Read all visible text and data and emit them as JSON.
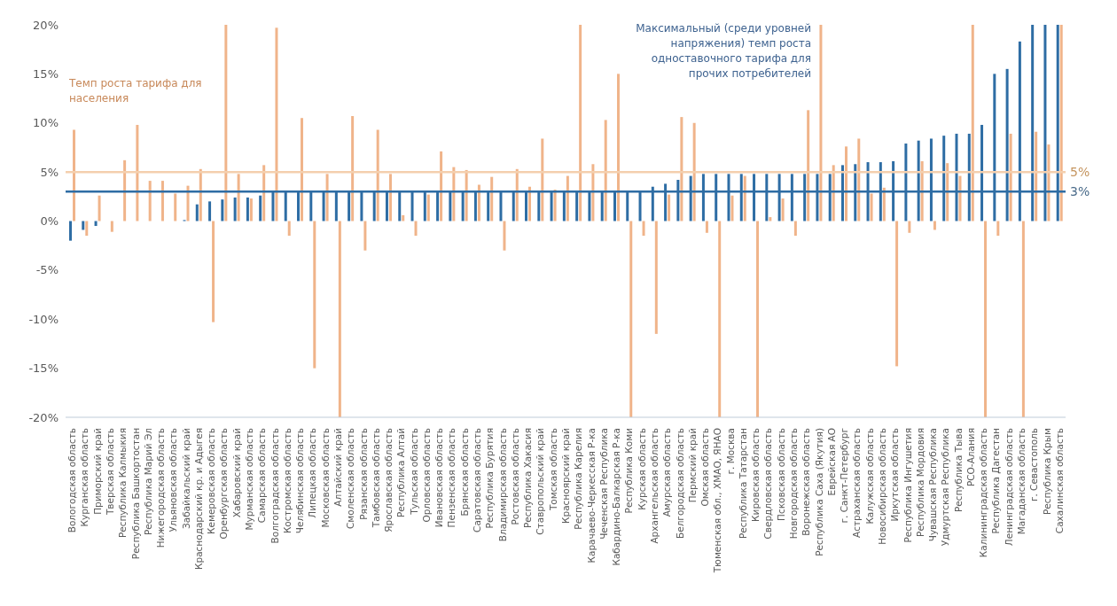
{
  "chart_data": {
    "type": "bar",
    "categories": [
      "Вологодская область",
      "Курганская область",
      "Приморский край",
      "Тверская область",
      "Республика Калмыкия",
      "Республика Башкортостан",
      "Республика Марий Эл",
      "Нижегородская область",
      "Ульяновская область",
      "Забайкальский край",
      "Краснодарский кр. и Адыгея",
      "Кемеровская область",
      "Оренбургская область",
      "Хабаровский край",
      "Мурманская область",
      "Самарская область",
      "Волгоградская область",
      "Костромская область",
      "Челябинская область",
      "Липецкая область",
      "Московская область",
      "Алтайский край",
      "Смоленская область",
      "Рязанская область",
      "Тамбовская область",
      "Ярославская область",
      "Республика Алтай",
      "Тульская область",
      "Орловская область",
      "Ивановская область",
      "Пензенская область",
      "Брянская область",
      "Саратовская область",
      "Республика Бурятия",
      "Владимирская область",
      "Ростовская область",
      "Республика Хакасия",
      "Ставропольский край",
      "Томская область",
      "Красноярский край",
      "Республика Карелия",
      "Карачаево-Черкесская Р-ка",
      "Чеченская Республика",
      "Кабардино-Балкарская Р-ка",
      "Республика Коми",
      "Курская область",
      "Архангельская область",
      "Амурская область",
      "Белгородская область",
      "Пермский край",
      "Омская область",
      "Тюменская обл., ХМАО, ЯНАО",
      "г. Москва",
      "Республика Татарстан",
      "Кировская область",
      "Свердловская область",
      "Псковская область",
      "Новгородская область",
      "Воронежская область",
      "Республика Саха (Якутия)",
      "Еврейская АО",
      "г. Санкт-Петербург",
      "Астраханская область",
      "Калужская область",
      "Новосибирская область",
      "Иркутская область",
      "Республика Ингушетия",
      "Республика Мордовия",
      "Чувашская Республика",
      "Удмуртская Республика",
      "Республика Тыва",
      "РСО-Алания",
      "Калининградская область",
      "Республика Дагестан",
      "Ленинградская область",
      "Магаданская область",
      "г. Севастополь",
      "Республика Крым",
      "Сахалинская область"
    ],
    "series": [
      {
        "name": "Максимальный (среди уровней напряжения) темп роста одноставочного тарифа для прочих потребителей",
        "color": "#2e6da4",
        "values": [
          -2.0,
          -0.9,
          -0.5,
          0,
          0,
          0,
          0,
          0,
          0,
          0.1,
          1.7,
          2.0,
          2.2,
          2.4,
          2.4,
          2.6,
          3,
          3,
          3,
          3,
          3,
          3,
          3,
          3,
          3,
          3,
          3,
          3,
          3,
          3,
          3,
          3,
          3,
          3,
          3,
          3,
          3,
          3,
          3,
          3,
          3,
          3,
          3,
          3,
          3,
          3,
          3.5,
          3.8,
          4.2,
          4.6,
          4.8,
          4.8,
          4.8,
          4.8,
          4.8,
          4.8,
          4.8,
          4.8,
          4.8,
          4.8,
          4.8,
          5.7,
          5.8,
          6.0,
          6.0,
          6.1,
          7.9,
          8.2,
          8.4,
          8.7,
          8.9,
          8.9,
          9.8,
          15.0,
          15.5,
          18.3,
          20,
          20,
          20
        ]
      },
      {
        "name": "Темп роста тарифа для населения",
        "color": "#f0b48a",
        "values": [
          9.3,
          -1.5,
          2.6,
          -1.1,
          6.2,
          9.8,
          4.1,
          4.1,
          2.8,
          3.6,
          5.3,
          -10.3,
          20,
          4.8,
          2.3,
          5.7,
          19.7,
          -1.5,
          10.5,
          -15,
          4.8,
          -20,
          10.7,
          -3,
          9.3,
          4.8,
          0.6,
          -1.5,
          2.7,
          7.1,
          5.5,
          5.2,
          3.7,
          4.5,
          -3,
          5.3,
          3.5,
          8.4,
          3.2,
          4.6,
          20,
          5.8,
          10.3,
          15.0,
          -20,
          -1.5,
          -11.5,
          2.7,
          10.6,
          10.0,
          -1.2,
          -20,
          2.6,
          4.6,
          -20,
          0.4,
          2.3,
          -1.5,
          11.3,
          20,
          5.7,
          7.6,
          8.4,
          2.8,
          3.4,
          -14.8,
          -1.2,
          6.1,
          -0.9,
          5.9,
          4.6,
          20,
          -20,
          -1.5,
          8.9,
          -20,
          9.1,
          7.8,
          20
        ]
      }
    ],
    "ylim": [
      -20,
      20
    ],
    "yticks": [
      {
        "value": -20,
        "label": "-20%"
      },
      {
        "value": -15,
        "label": "-15%"
      },
      {
        "value": -10,
        "label": "-10%"
      },
      {
        "value": -5,
        "label": "-5%"
      },
      {
        "value": 0,
        "label": "0%"
      },
      {
        "value": 5,
        "label": "5%"
      },
      {
        "value": 10,
        "label": "10%"
      },
      {
        "value": 15,
        "label": "15%"
      },
      {
        "value": 20,
        "label": "20%"
      }
    ],
    "ref_lines": [
      {
        "axis": "y",
        "value": 5,
        "label": "5%",
        "color": "#f4cfae"
      },
      {
        "axis": "y",
        "value": 3,
        "label": "3%",
        "color": "#2e6da4"
      }
    ],
    "grid": false
  }
}
